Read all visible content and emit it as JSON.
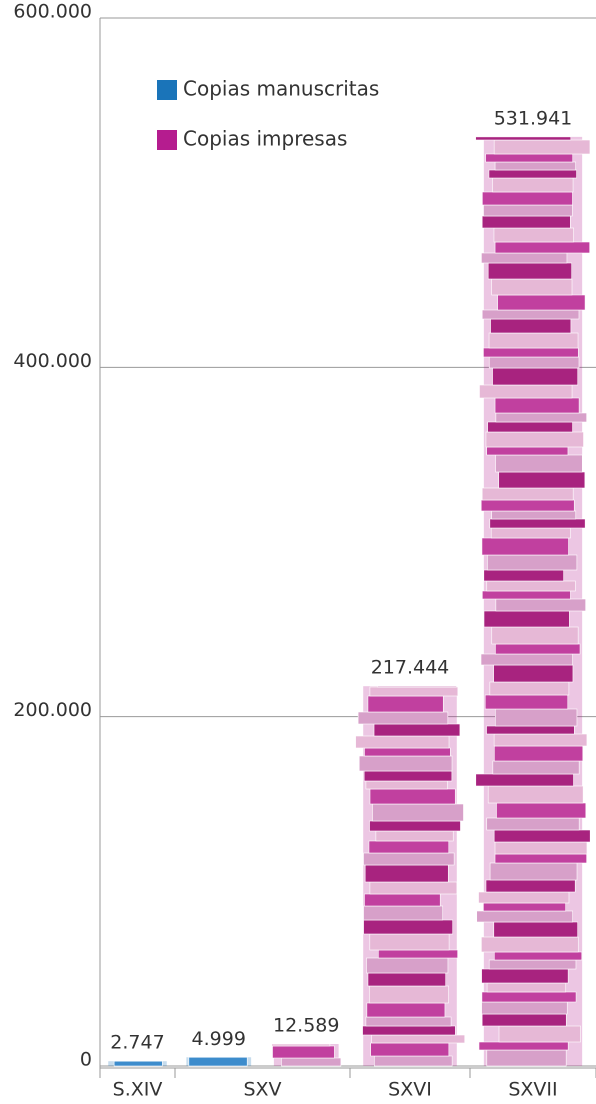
{
  "chart_data": {
    "type": "bar",
    "categories": [
      "S.XIV",
      "SXV",
      "SXVI",
      "SXVII"
    ],
    "series": [
      {
        "name": "Copias manuscritas",
        "color": "#1a74b9",
        "values": [
          2747,
          4999,
          null,
          null
        ],
        "value_labels": [
          "2.747",
          "4.999",
          null,
          null
        ]
      },
      {
        "name": "Copias impresas",
        "color": "#b51c8f",
        "values": [
          null,
          12589,
          217444,
          531941
        ],
        "value_labels": [
          null,
          "12.589",
          "217.444",
          "531.941"
        ]
      }
    ],
    "ylim": [
      0,
      600000
    ],
    "yticks": [
      0,
      {
        "value": 200000,
        "label": "200.000"
      },
      {
        "value": 400000,
        "label": "400.000"
      },
      {
        "value": 600000,
        "label": "600.000"
      }
    ],
    "grid": true
  }
}
